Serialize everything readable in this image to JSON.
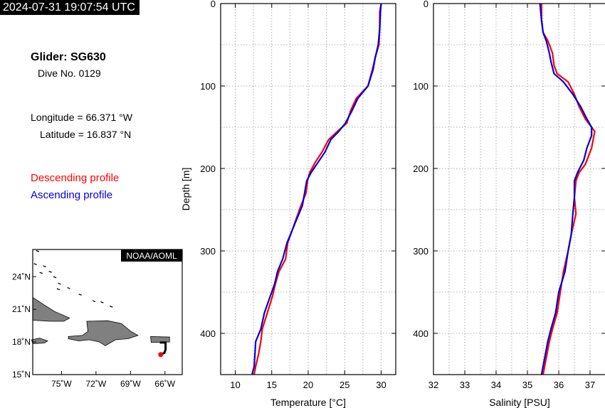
{
  "header": {
    "timestamp": "2024-07-31 19:07:54 UTC",
    "glider": "Glider: SG630",
    "dive": "Dive No. 0129",
    "longitude": "Longitude = 66.371 °W",
    "latitude": "Latitude = 16.837 °N"
  },
  "legend": {
    "descending": "Descending profile",
    "ascending": "Ascending profile",
    "descending_color": "#ff0000",
    "ascending_color": "#0000e0"
  },
  "map": {
    "badge": "NOAA/AOML",
    "lon_ticks": [
      "75˚W",
      "72˚W",
      "69˚W",
      "66˚W"
    ],
    "lat_ticks": [
      "24˚N",
      "21˚N",
      "18˚N",
      "15˚N"
    ],
    "lon_range": [
      -77.5,
      -64.5
    ],
    "lat_range": [
      15,
      26.5
    ],
    "land_color": "#808080",
    "track": [
      [
        -66.45,
        17.95
      ],
      [
        -65.95,
        17.95
      ],
      [
        -65.95,
        17.3
      ],
      [
        -66.05,
        17.0
      ],
      [
        -66.37,
        16.84
      ]
    ],
    "glider_position": [
      -66.371,
      16.837
    ]
  },
  "chart_data": [
    {
      "type": "line",
      "xlabel": "Temperature [°C]",
      "ylabel": "Depth [m]",
      "xlim": [
        8,
        32
      ],
      "ylim": [
        450,
        0
      ],
      "x_ticks": [
        10,
        15,
        20,
        25,
        30
      ],
      "y_ticks": [
        0,
        100,
        200,
        300,
        400
      ],
      "grid": true,
      "series": [
        {
          "color": "#ff0000",
          "points": [
            [
              30.0,
              0
            ],
            [
              29.8,
              10
            ],
            [
              29.8,
              30
            ],
            [
              29.7,
              50
            ],
            [
              29.2,
              65
            ],
            [
              28.8,
              80
            ],
            [
              28.2,
              100
            ],
            [
              26.6,
              115
            ],
            [
              25.8,
              130
            ],
            [
              25.3,
              145
            ],
            [
              24.0,
              155
            ],
            [
              22.8,
              165
            ],
            [
              21.9,
              180
            ],
            [
              21.0,
              192
            ],
            [
              20.2,
              205
            ],
            [
              19.9,
              215
            ],
            [
              19.7,
              230
            ],
            [
              19.0,
              245
            ],
            [
              18.4,
              260
            ],
            [
              17.8,
              275
            ],
            [
              17.2,
              290
            ],
            [
              16.9,
              310
            ],
            [
              16.0,
              325
            ],
            [
              15.5,
              340
            ],
            [
              15.1,
              355
            ],
            [
              14.4,
              375
            ],
            [
              13.7,
              395
            ],
            [
              13.5,
              410
            ],
            [
              13.2,
              425
            ],
            [
              12.8,
              440
            ],
            [
              12.6,
              450
            ]
          ]
        },
        {
          "color": "#0000e0",
          "points": [
            [
              30.0,
              0
            ],
            [
              29.9,
              10
            ],
            [
              29.8,
              30
            ],
            [
              29.6,
              50
            ],
            [
              29.2,
              65
            ],
            [
              28.9,
              80
            ],
            [
              28.2,
              100
            ],
            [
              26.8,
              115
            ],
            [
              26.0,
              130
            ],
            [
              25.1,
              145
            ],
            [
              24.2,
              155
            ],
            [
              23.1,
              165
            ],
            [
              22.3,
              180
            ],
            [
              21.4,
              192
            ],
            [
              20.4,
              205
            ],
            [
              19.8,
              215
            ],
            [
              19.5,
              230
            ],
            [
              19.2,
              245
            ],
            [
              18.5,
              260
            ],
            [
              17.8,
              275
            ],
            [
              17.1,
              290
            ],
            [
              16.5,
              310
            ],
            [
              15.8,
              325
            ],
            [
              15.4,
              340
            ],
            [
              14.8,
              355
            ],
            [
              14.0,
              375
            ],
            [
              13.5,
              395
            ],
            [
              12.8,
              410
            ],
            [
              12.7,
              425
            ],
            [
              12.6,
              440
            ],
            [
              12.3,
              450
            ]
          ]
        }
      ]
    },
    {
      "type": "line",
      "xlabel": "Salinity [PSU]",
      "ylabel": "",
      "xlim": [
        32,
        37.5
      ],
      "ylim": [
        450,
        0
      ],
      "x_ticks": [
        32,
        33,
        34,
        35,
        36,
        37
      ],
      "y_ticks": [
        0,
        100,
        200,
        300,
        400
      ],
      "grid": true,
      "series": [
        {
          "color": "#ff0000",
          "points": [
            [
              35.45,
              0
            ],
            [
              35.45,
              20
            ],
            [
              35.5,
              35
            ],
            [
              35.65,
              45
            ],
            [
              35.8,
              60
            ],
            [
              35.85,
              75
            ],
            [
              35.95,
              85
            ],
            [
              36.3,
              95
            ],
            [
              36.5,
              110
            ],
            [
              36.65,
              125
            ],
            [
              36.85,
              140
            ],
            [
              37.05,
              150
            ],
            [
              37.15,
              155
            ],
            [
              37.05,
              175
            ],
            [
              36.85,
              195
            ],
            [
              36.65,
              205
            ],
            [
              36.55,
              215
            ],
            [
              36.5,
              235
            ],
            [
              36.55,
              255
            ],
            [
              36.4,
              280
            ],
            [
              36.3,
              300
            ],
            [
              36.15,
              325
            ],
            [
              36.05,
              350
            ],
            [
              35.95,
              375
            ],
            [
              35.8,
              395
            ],
            [
              35.7,
              410
            ],
            [
              35.6,
              430
            ],
            [
              35.5,
              450
            ]
          ]
        },
        {
          "color": "#0000e0",
          "points": [
            [
              35.4,
              0
            ],
            [
              35.45,
              20
            ],
            [
              35.5,
              35
            ],
            [
              35.6,
              45
            ],
            [
              35.7,
              60
            ],
            [
              35.75,
              70
            ],
            [
              35.85,
              85
            ],
            [
              36.15,
              95
            ],
            [
              36.45,
              110
            ],
            [
              36.7,
              125
            ],
            [
              36.9,
              140
            ],
            [
              37.05,
              150
            ],
            [
              37.05,
              160
            ],
            [
              36.9,
              175
            ],
            [
              36.8,
              190
            ],
            [
              36.6,
              205
            ],
            [
              36.5,
              215
            ],
            [
              36.5,
              235
            ],
            [
              36.45,
              255
            ],
            [
              36.4,
              280
            ],
            [
              36.3,
              300
            ],
            [
              36.2,
              325
            ],
            [
              36.0,
              350
            ],
            [
              35.9,
              375
            ],
            [
              35.75,
              395
            ],
            [
              35.65,
              410
            ],
            [
              35.55,
              430
            ],
            [
              35.45,
              450
            ]
          ]
        }
      ]
    }
  ]
}
